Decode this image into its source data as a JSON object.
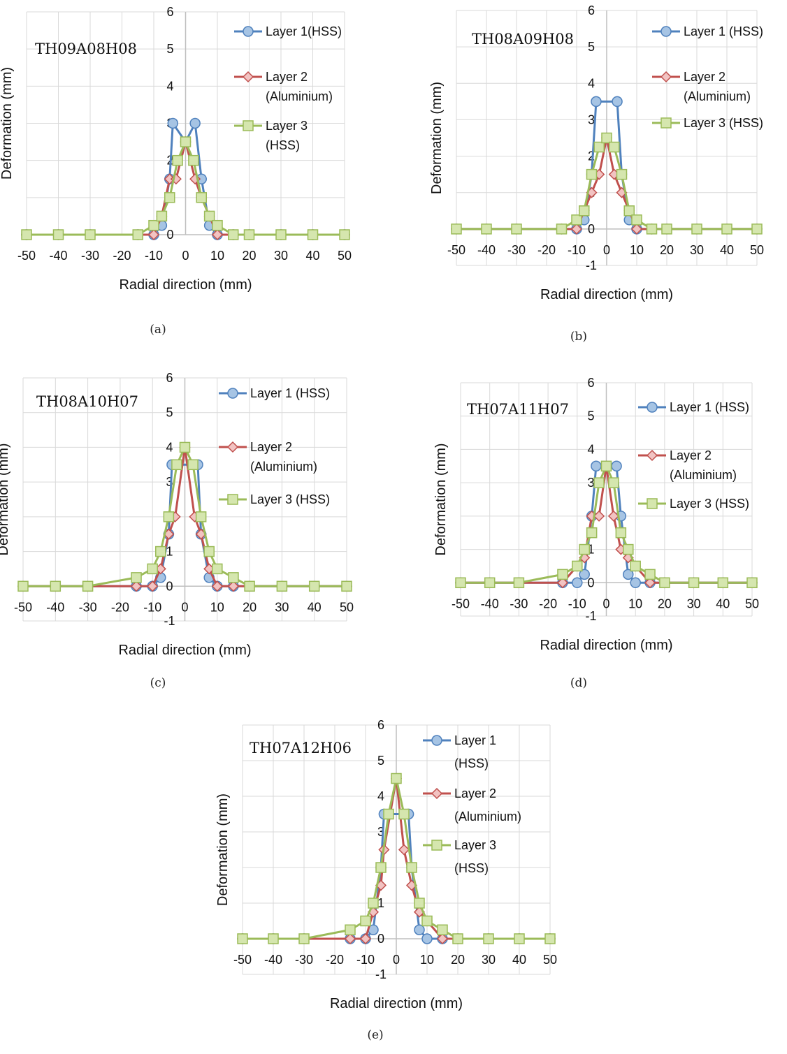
{
  "colors": {
    "layer1": "#4F81BD",
    "layer1_fill": "#A6C4E4",
    "layer2": "#C0504D",
    "layer2_fill": "#F2C3C2",
    "layer3": "#9BBB59",
    "layer3_fill": "#D5E6AE",
    "grid": "#D9D9D9",
    "axis": "#BFBFBF"
  },
  "chart_data": [
    {
      "type": "line",
      "caption": "(a)",
      "title": "TH09A08H08",
      "xlabel": "Radial direction (mm)",
      "ylabel": "Deformation (mm)",
      "xlim": [
        -50,
        50
      ],
      "ylim": [
        0,
        6
      ],
      "xticks": [
        "-50",
        "-40",
        "-30",
        "-20",
        "-10",
        "0",
        "10",
        "20",
        "30",
        "40",
        "50"
      ],
      "yticks": [
        "0",
        "1",
        "2",
        "3",
        "4",
        "5",
        "6"
      ],
      "legend_position": "top-right",
      "series": [
        {
          "name": "Layer 1(HSS)",
          "legend_lines": [
            "Layer 1(HSS)"
          ],
          "x": [
            -50,
            -40,
            -30,
            -15,
            -10,
            -7.5,
            -5,
            -4,
            0,
            3,
            5,
            7.5,
            10,
            15,
            20,
            30,
            40,
            50
          ],
          "y": [
            0,
            0,
            0,
            0,
            0,
            0.25,
            1.5,
            3,
            2.5,
            3,
            1.5,
            0.25,
            0,
            0,
            0,
            0,
            0,
            0
          ]
        },
        {
          "name": "Layer 2 (Aluminium)",
          "legend_lines": [
            "Layer 2",
            "(Aluminium)"
          ],
          "x": [
            -50,
            -40,
            -30,
            -15,
            -10,
            -7.5,
            -5,
            -3,
            0,
            3,
            5,
            7.5,
            10,
            15,
            20,
            30,
            40,
            50
          ],
          "y": [
            0,
            0,
            0,
            0,
            0,
            0.5,
            1.5,
            1.5,
            2.5,
            1.5,
            1,
            0.5,
            0,
            0,
            0,
            0,
            0,
            0
          ]
        },
        {
          "name": "Layer 3 (HSS)",
          "legend_lines": [
            "Layer 3",
            "(HSS)"
          ],
          "x": [
            -50,
            -40,
            -30,
            -15,
            -10,
            -7.5,
            -5,
            -2.5,
            0,
            2.5,
            5,
            7.5,
            10,
            15,
            20,
            30,
            40,
            50
          ],
          "y": [
            0,
            0,
            0,
            0,
            0.25,
            0.5,
            1,
            2,
            2.5,
            2,
            1,
            0.5,
            0.25,
            0,
            0,
            0,
            0,
            0
          ]
        }
      ]
    },
    {
      "type": "line",
      "caption": "(b)",
      "title": "TH08A09H08",
      "xlabel": "Radial direction (mm)",
      "ylabel": "Deformation (mm)",
      "xlim": [
        -50,
        50
      ],
      "ylim": [
        -1,
        6
      ],
      "xticks": [
        "-50",
        "-40",
        "-30",
        "-20",
        "-10",
        "0",
        "10",
        "20",
        "30",
        "40",
        "50"
      ],
      "yticks": [
        "-1",
        "0",
        "1",
        "2",
        "3",
        "4",
        "5",
        "6"
      ],
      "legend_position": "top-right",
      "series": [
        {
          "name": "Layer 1 (HSS)",
          "legend_lines": [
            "Layer 1 (HSS)"
          ],
          "x": [
            -50,
            -40,
            -30,
            -15,
            -10,
            -7.5,
            -5,
            -3.5,
            3.5,
            5,
            7.5,
            10,
            15,
            20,
            30,
            40,
            50
          ],
          "y": [
            0,
            0,
            0,
            0,
            0,
            0.25,
            1.5,
            3.5,
            3.5,
            1.5,
            0.25,
            0,
            0,
            0,
            0,
            0,
            0
          ]
        },
        {
          "name": "Layer 2 (Aluminium)",
          "legend_lines": [
            "Layer 2",
            "(Aluminium)"
          ],
          "x": [
            -50,
            -40,
            -30,
            -15,
            -10,
            -7.5,
            -5,
            -2.5,
            0,
            2.5,
            5,
            7.5,
            10,
            15,
            20,
            30,
            40,
            50
          ],
          "y": [
            0,
            0,
            0,
            0,
            0,
            0.5,
            1,
            1.5,
            2.5,
            1.5,
            1,
            0.5,
            0,
            0,
            0,
            0,
            0,
            0
          ]
        },
        {
          "name": "Layer 3 (HSS)",
          "legend_lines": [
            "Layer 3 (HSS)"
          ],
          "x": [
            -50,
            -40,
            -30,
            -15,
            -10,
            -7.5,
            -5,
            -2.5,
            0,
            2.5,
            5,
            7.5,
            10,
            15,
            20,
            30,
            40,
            50
          ],
          "y": [
            0,
            0,
            0,
            0,
            0.25,
            0.5,
            1.5,
            2.25,
            2.5,
            2.25,
            1.5,
            0.5,
            0.25,
            0,
            0,
            0,
            0,
            0
          ]
        }
      ]
    },
    {
      "type": "line",
      "caption": "(c)",
      "title": "TH08A10H07",
      "xlabel": "Radial direction (mm)",
      "ylabel": "Deformation (mm)",
      "xlim": [
        -50,
        50
      ],
      "ylim": [
        -1,
        6
      ],
      "xticks": [
        "-50",
        "-40",
        "-30",
        "-20",
        "-10",
        "0",
        "10",
        "20",
        "30",
        "40",
        "50"
      ],
      "yticks": [
        "-1",
        "0",
        "1",
        "2",
        "3",
        "4",
        "5",
        "6"
      ],
      "legend_position": "top-right",
      "series": [
        {
          "name": "Layer 1 (HSS)",
          "legend_lines": [
            "Layer 1 (HSS)"
          ],
          "x": [
            -50,
            -40,
            -30,
            -15,
            -10,
            -7.5,
            -5,
            -4,
            4,
            5,
            7.5,
            10,
            15,
            20,
            30,
            40,
            50
          ],
          "y": [
            0,
            0,
            0,
            0,
            0,
            0.25,
            1.5,
            3.5,
            3.5,
            1.5,
            0.25,
            0,
            0,
            0,
            0,
            0,
            0
          ]
        },
        {
          "name": "Layer 2 (Aluminium)",
          "legend_lines": [
            "Layer 2",
            "(Aluminium)"
          ],
          "x": [
            -50,
            -40,
            -30,
            -15,
            -10,
            -7.5,
            -5,
            -3,
            0,
            3,
            5,
            7.5,
            10,
            15,
            20,
            30,
            40,
            50
          ],
          "y": [
            0,
            0,
            0,
            0,
            0,
            0.5,
            1.5,
            2,
            4,
            2,
            1.5,
            0.5,
            0,
            0,
            0,
            0,
            0,
            0
          ]
        },
        {
          "name": "Layer 3 (HSS)",
          "legend_lines": [
            "Layer 3 (HSS)"
          ],
          "x": [
            -50,
            -40,
            -30,
            -15,
            -10,
            -7.5,
            -5,
            -2.5,
            0,
            2.5,
            5,
            7.5,
            10,
            15,
            20,
            30,
            40,
            50
          ],
          "y": [
            0,
            0,
            0,
            0.25,
            0.5,
            1,
            2,
            3.5,
            4,
            3.5,
            2,
            1,
            0.5,
            0.25,
            0,
            0,
            0,
            0
          ]
        }
      ]
    },
    {
      "type": "line",
      "caption": "(d)",
      "title": "TH07A11H07",
      "xlabel": "Radial direction (mm)",
      "ylabel": "Deformation (mm)",
      "xlim": [
        -50,
        50
      ],
      "ylim": [
        -1,
        6
      ],
      "xticks": [
        "-50",
        "-40",
        "-30",
        "-20",
        "-10",
        "0",
        "10",
        "20",
        "30",
        "40",
        "50"
      ],
      "yticks": [
        "-1",
        "0",
        "1",
        "2",
        "3",
        "4",
        "5",
        "6"
      ],
      "legend_position": "top-right",
      "series": [
        {
          "name": "Layer 1 (HSS)",
          "legend_lines": [
            "Layer 1 (HSS)"
          ],
          "x": [
            -50,
            -40,
            -30,
            -15,
            -10,
            -7.5,
            -5,
            -3.5,
            3.5,
            5,
            7.5,
            10,
            15,
            20,
            30,
            40,
            50
          ],
          "y": [
            0,
            0,
            0,
            0,
            0,
            0.25,
            2,
            3.5,
            3.5,
            2,
            0.25,
            0,
            0,
            0,
            0,
            0,
            0
          ]
        },
        {
          "name": "Layer 2 (Aluminium)",
          "legend_lines": [
            "Layer 2",
            "(Aluminium)"
          ],
          "x": [
            -50,
            -40,
            -30,
            -15,
            -10,
            -7.5,
            -5,
            -2.5,
            0,
            2.5,
            5,
            7.5,
            10,
            15,
            20,
            30,
            40,
            50
          ],
          "y": [
            0,
            0,
            0,
            0,
            0.5,
            0.75,
            2,
            2,
            3.5,
            2,
            1,
            0.75,
            0.5,
            0,
            0,
            0,
            0,
            0
          ]
        },
        {
          "name": "Layer 3 (HSS)",
          "legend_lines": [
            "Layer 3 (HSS)"
          ],
          "x": [
            -50,
            -40,
            -30,
            -15,
            -10,
            -7.5,
            -5,
            -2.5,
            0,
            2.5,
            5,
            7.5,
            10,
            15,
            20,
            30,
            40,
            50
          ],
          "y": [
            0,
            0,
            0,
            0.25,
            0.5,
            1,
            1.5,
            3,
            3.5,
            3,
            1.5,
            1,
            0.5,
            0.25,
            0,
            0,
            0,
            0
          ]
        }
      ]
    },
    {
      "type": "line",
      "caption": "(e)",
      "title": "TH07A12H06",
      "xlabel": "Radial direction (mm)",
      "ylabel": "Deformation (mm)",
      "xlim": [
        -50,
        50
      ],
      "ylim": [
        -1,
        6
      ],
      "xticks": [
        "-50",
        "-40",
        "-30",
        "-20",
        "-10",
        "0",
        "10",
        "20",
        "30",
        "40",
        "50"
      ],
      "yticks": [
        "-1",
        "0",
        "1",
        "2",
        "3",
        "4",
        "5",
        "6"
      ],
      "legend_position": "top-right",
      "series": [
        {
          "name": "Layer 1 (HSS)",
          "legend_lines": [
            "Layer 1",
            "(HSS)"
          ],
          "x": [
            -50,
            -40,
            -30,
            -15,
            -10,
            -7.5,
            -5,
            -4,
            4,
            5,
            7.5,
            10,
            15,
            20,
            30,
            40,
            50
          ],
          "y": [
            0,
            0,
            0,
            0,
            0,
            0.25,
            2,
            3.5,
            3.5,
            2,
            0.25,
            0,
            0,
            0,
            0,
            0,
            0
          ]
        },
        {
          "name": "Layer 2 (Aluminium)",
          "legend_lines": [
            "Layer 2",
            "(Aluminium)"
          ],
          "x": [
            -50,
            -40,
            -30,
            -15,
            -10,
            -7.5,
            -5,
            -4,
            0,
            2.5,
            5,
            7.5,
            10,
            15,
            20,
            30,
            40,
            50
          ],
          "y": [
            0,
            0,
            0,
            0,
            0,
            0.75,
            1.5,
            2.5,
            4.5,
            2.5,
            1.5,
            0.75,
            0.5,
            0,
            0,
            0,
            0,
            0
          ]
        },
        {
          "name": "Layer 3 (HSS)",
          "legend_lines": [
            "Layer 3",
            "(HSS)"
          ],
          "x": [
            -50,
            -40,
            -30,
            -15,
            -10,
            -7.5,
            -5,
            -2.5,
            0,
            2.5,
            5,
            7.5,
            10,
            15,
            20,
            30,
            40,
            50
          ],
          "y": [
            0,
            0,
            0,
            0.25,
            0.5,
            1,
            2,
            3.5,
            4.5,
            3.5,
            2,
            1,
            0.5,
            0.25,
            0,
            0,
            0,
            0
          ]
        }
      ]
    }
  ]
}
